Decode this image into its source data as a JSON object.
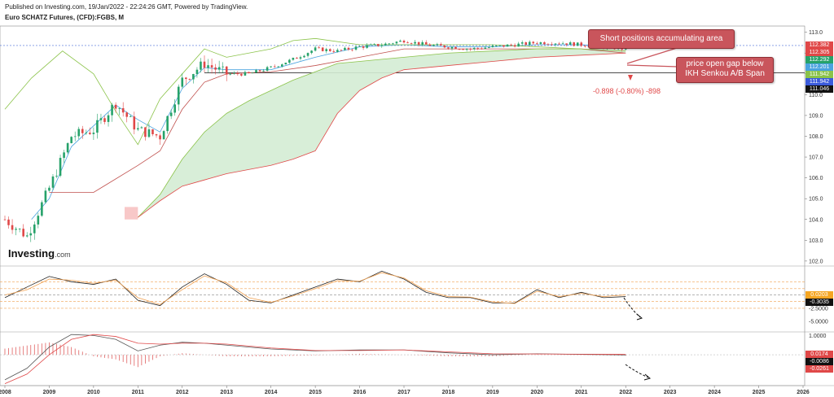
{
  "header": {
    "published": "Published on Investing.com, 19/Jan/2022 - 22:24:26 GMT, Powered by TradingView.",
    "symbol": "Euro SCHATZ Futures, (CFD):FGBS, M"
  },
  "logo": {
    "brand": "Investing",
    "suffix": ".com"
  },
  "annotations": {
    "short_positions": "Short positions accumulating area",
    "gap_line1": "price open gap below",
    "gap_line2": "IKH Senkou A/B Span",
    "change": "-0.898 (-0.80%) -898"
  },
  "colors": {
    "up_candle": "#26a26a",
    "down_candle": "#e04848",
    "tenkan": "#4aa3df",
    "kijun": "#c0504d",
    "chikou": "#8bc34a",
    "cloud_fill": "#d4ecd4",
    "callout": "#c9555c"
  },
  "chart_data": [
    {
      "type": "line",
      "title": "Euro SCHATZ Futures, (CFD):FGBS, M",
      "x_range": [
        2008,
        2026
      ],
      "x_ticks": [
        "2008",
        "2009",
        "2010",
        "2011",
        "2012",
        "2013",
        "2014",
        "2015",
        "2016",
        "2017",
        "2018",
        "2019",
        "2020",
        "2021",
        "2022",
        "2023",
        "2024",
        "2025",
        "2026"
      ],
      "ylim": [
        101.8,
        113.3
      ],
      "y_ticks": [
        102.0,
        103.0,
        104.0,
        105.0,
        106.0,
        107.0,
        108.0,
        109.0,
        110.0,
        111.0,
        112.0,
        113.0
      ],
      "price_labels": [
        {
          "value": 112.382,
          "color": "#e04848"
        },
        {
          "value": 112.305,
          "color": "#e04848"
        },
        {
          "value": 112.292,
          "color": "#26a26a"
        },
        {
          "value": 112.201,
          "color": "#4aa3df"
        },
        {
          "value": 111.942,
          "color": "#8bc34a"
        },
        {
          "value": 111.942,
          "color": "#3b5bdb"
        },
        {
          "value": 111.046,
          "color": "#111111"
        }
      ],
      "series": [
        {
          "name": "Close",
          "kind": "candles",
          "x": [
            2008.0,
            2008.5,
            2009.0,
            2009.5,
            2010.0,
            2010.5,
            2011.0,
            2011.5,
            2012.0,
            2012.5,
            2013.0,
            2013.5,
            2014.0,
            2014.5,
            2015.0,
            2015.5,
            2016.0,
            2016.5,
            2017.0,
            2017.5,
            2018.0,
            2018.5,
            2019.0,
            2019.5,
            2020.0,
            2020.5,
            2021.0,
            2021.5,
            2022.0
          ],
          "values": [
            104.0,
            103.2,
            105.5,
            108.0,
            108.3,
            109.6,
            108.3,
            108.0,
            110.7,
            111.5,
            111.0,
            111.0,
            111.3,
            111.7,
            112.2,
            112.1,
            112.3,
            112.4,
            112.6,
            112.4,
            112.3,
            112.2,
            112.3,
            112.4,
            112.5,
            112.5,
            112.4,
            112.3,
            112.2
          ]
        },
        {
          "name": "Tenkan",
          "x": [
            2008.6,
            2009.0,
            2009.5,
            2010.0,
            2010.5,
            2011.0,
            2011.5,
            2012.0,
            2012.5,
            2013.0,
            2014.0,
            2015.0,
            2016.0,
            2017.0,
            2018.0,
            2019.0,
            2020.0,
            2021.0,
            2022.0
          ],
          "values": [
            104.0,
            105.0,
            107.5,
            108.5,
            109.5,
            108.8,
            108.2,
            110.3,
            111.3,
            111.2,
            111.2,
            111.8,
            112.3,
            112.4,
            112.3,
            112.3,
            112.4,
            112.4,
            112.3
          ]
        },
        {
          "name": "Kijun",
          "x": [
            2009.0,
            2010.0,
            2011.0,
            2011.5,
            2012.0,
            2012.5,
            2013.0,
            2014.0,
            2015.0,
            2016.0,
            2017.0,
            2018.0,
            2019.0,
            2020.0,
            2021.0,
            2022.0
          ],
          "values": [
            105.3,
            105.3,
            106.6,
            107.3,
            109.3,
            110.6,
            111.0,
            111.1,
            111.4,
            111.8,
            112.2,
            112.2,
            112.2,
            112.2,
            112.2,
            112.0
          ]
        },
        {
          "name": "Chikou",
          "x": [
            2008.0,
            2008.6,
            2009.3,
            2010.0,
            2010.5,
            2011.0,
            2011.5,
            2012.0,
            2012.5,
            2013.0,
            2014.0,
            2014.5,
            2015.0,
            2016.0,
            2017.0,
            2018.0,
            2019.0,
            2020.0,
            2021.0
          ],
          "values": [
            109.3,
            110.8,
            112.1,
            111.0,
            109.2,
            107.6,
            109.8,
            111.0,
            112.2,
            111.8,
            112.2,
            112.6,
            112.7,
            112.4,
            112.4,
            112.4,
            112.4,
            112.3,
            112.2
          ]
        },
        {
          "name": "Senkou A",
          "x": [
            2011.0,
            2011.5,
            2012.0,
            2012.5,
            2013.0,
            2013.5,
            2014.0,
            2014.5,
            2015.0,
            2015.5,
            2016.0,
            2016.5,
            2017.0,
            2018.0,
            2019.0,
            2020.0,
            2021.0,
            2022.0
          ],
          "values": [
            104.1,
            105.2,
            106.9,
            108.2,
            109.1,
            109.7,
            110.2,
            110.7,
            111.1,
            111.5,
            111.6,
            111.7,
            111.8,
            112.0,
            112.1,
            112.2,
            112.2,
            112.1
          ]
        },
        {
          "name": "Senkou B",
          "x": [
            2011.0,
            2011.5,
            2012.0,
            2012.5,
            2013.0,
            2013.5,
            2014.0,
            2014.5,
            2015.0,
            2015.5,
            2016.0,
            2016.5,
            2017.0,
            2018.0,
            2019.0,
            2020.0,
            2021.0,
            2022.0
          ],
          "values": [
            104.1,
            104.9,
            105.6,
            105.9,
            106.2,
            106.4,
            106.6,
            106.9,
            107.3,
            109.1,
            110.2,
            110.8,
            111.2,
            111.4,
            111.6,
            111.8,
            111.9,
            112.0
          ]
        }
      ]
    },
    {
      "type": "line",
      "panel": "oscillator",
      "ylim": [
        -6.5,
        5.0
      ],
      "y_ticks": [
        -5.0,
        -2.5
      ],
      "price_labels": [
        {
          "value": 0.0203,
          "color": "#f5a623"
        },
        {
          "value": -0.3035,
          "color": "#111111"
        }
      ],
      "levels": [
        2.5,
        1.2,
        0.0,
        -1.2,
        -2.5
      ],
      "series": [
        {
          "name": "Osc",
          "x": [
            2008.0,
            2008.5,
            2009.0,
            2009.5,
            2010.0,
            2010.5,
            2011.0,
            2011.5,
            2012.0,
            2012.5,
            2013.0,
            2013.5,
            2014.0,
            2014.5,
            2015.0,
            2015.5,
            2016.0,
            2016.5,
            2017.0,
            2017.5,
            2018.0,
            2018.5,
            2019.0,
            2019.5,
            2020.0,
            2020.5,
            2021.0,
            2021.5,
            2022.0
          ],
          "values": [
            -0.5,
            1.5,
            3.5,
            2.5,
            2.0,
            3.0,
            -1.0,
            -2.0,
            1.5,
            4.0,
            2.0,
            -1.0,
            -1.5,
            0.0,
            1.5,
            3.0,
            2.5,
            4.5,
            3.0,
            0.5,
            -0.5,
            -0.5,
            -1.5,
            -1.5,
            1.0,
            -0.5,
            0.5,
            -0.5,
            -0.3
          ]
        },
        {
          "name": "Signal",
          "x": [
            2008.0,
            2008.5,
            2009.0,
            2009.5,
            2010.0,
            2010.5,
            2011.0,
            2011.5,
            2012.0,
            2012.5,
            2013.0,
            2013.5,
            2014.0,
            2014.5,
            2015.0,
            2015.5,
            2016.0,
            2016.5,
            2017.0,
            2017.5,
            2018.0,
            2018.5,
            2019.0,
            2019.5,
            2020.0,
            2020.5,
            2021.0,
            2021.5,
            2022.0
          ],
          "values": [
            0.0,
            1.0,
            3.0,
            2.8,
            2.2,
            2.8,
            -0.5,
            -1.8,
            1.0,
            3.6,
            2.3,
            -0.5,
            -1.4,
            -0.2,
            1.2,
            2.7,
            2.6,
            4.2,
            3.2,
            0.8,
            -0.3,
            -0.4,
            -1.3,
            -1.6,
            0.7,
            -0.3,
            0.3,
            -0.3,
            0.02
          ]
        }
      ]
    },
    {
      "type": "line",
      "panel": "macd",
      "ylim": [
        -1.6,
        1.1
      ],
      "y_ticks": [
        1.0
      ],
      "price_labels": [
        {
          "value": 0.0174,
          "color": "#e04848"
        },
        {
          "value": -0.0086,
          "color": "#111111"
        },
        {
          "value": -0.0261,
          "color": "#e04848"
        }
      ],
      "series": [
        {
          "name": "MACD",
          "x": [
            2008.0,
            2008.5,
            2009.0,
            2009.5,
            2010.0,
            2010.5,
            2011.0,
            2011.5,
            2012.0,
            2012.5,
            2013.0,
            2014.0,
            2015.0,
            2016.0,
            2017.0,
            2018.0,
            2019.0,
            2020.0,
            2021.0,
            2022.0
          ],
          "values": [
            -1.3,
            -0.7,
            0.4,
            1.05,
            1.0,
            0.8,
            0.2,
            0.5,
            0.65,
            0.6,
            0.5,
            0.3,
            0.2,
            0.25,
            0.25,
            0.1,
            0.0,
            0.05,
            0.02,
            -0.01
          ]
        },
        {
          "name": "Signal",
          "x": [
            2008.0,
            2008.5,
            2009.0,
            2009.5,
            2010.0,
            2010.5,
            2011.0,
            2011.5,
            2012.0,
            2012.5,
            2013.0,
            2014.0,
            2015.0,
            2016.0,
            2017.0,
            2018.0,
            2019.0,
            2020.0,
            2021.0,
            2022.0
          ],
          "values": [
            -1.5,
            -1.0,
            0.0,
            0.8,
            1.05,
            0.95,
            0.6,
            0.55,
            0.6,
            0.6,
            0.55,
            0.35,
            0.22,
            0.22,
            0.25,
            0.15,
            0.05,
            0.04,
            0.03,
            0.02
          ]
        }
      ]
    }
  ]
}
